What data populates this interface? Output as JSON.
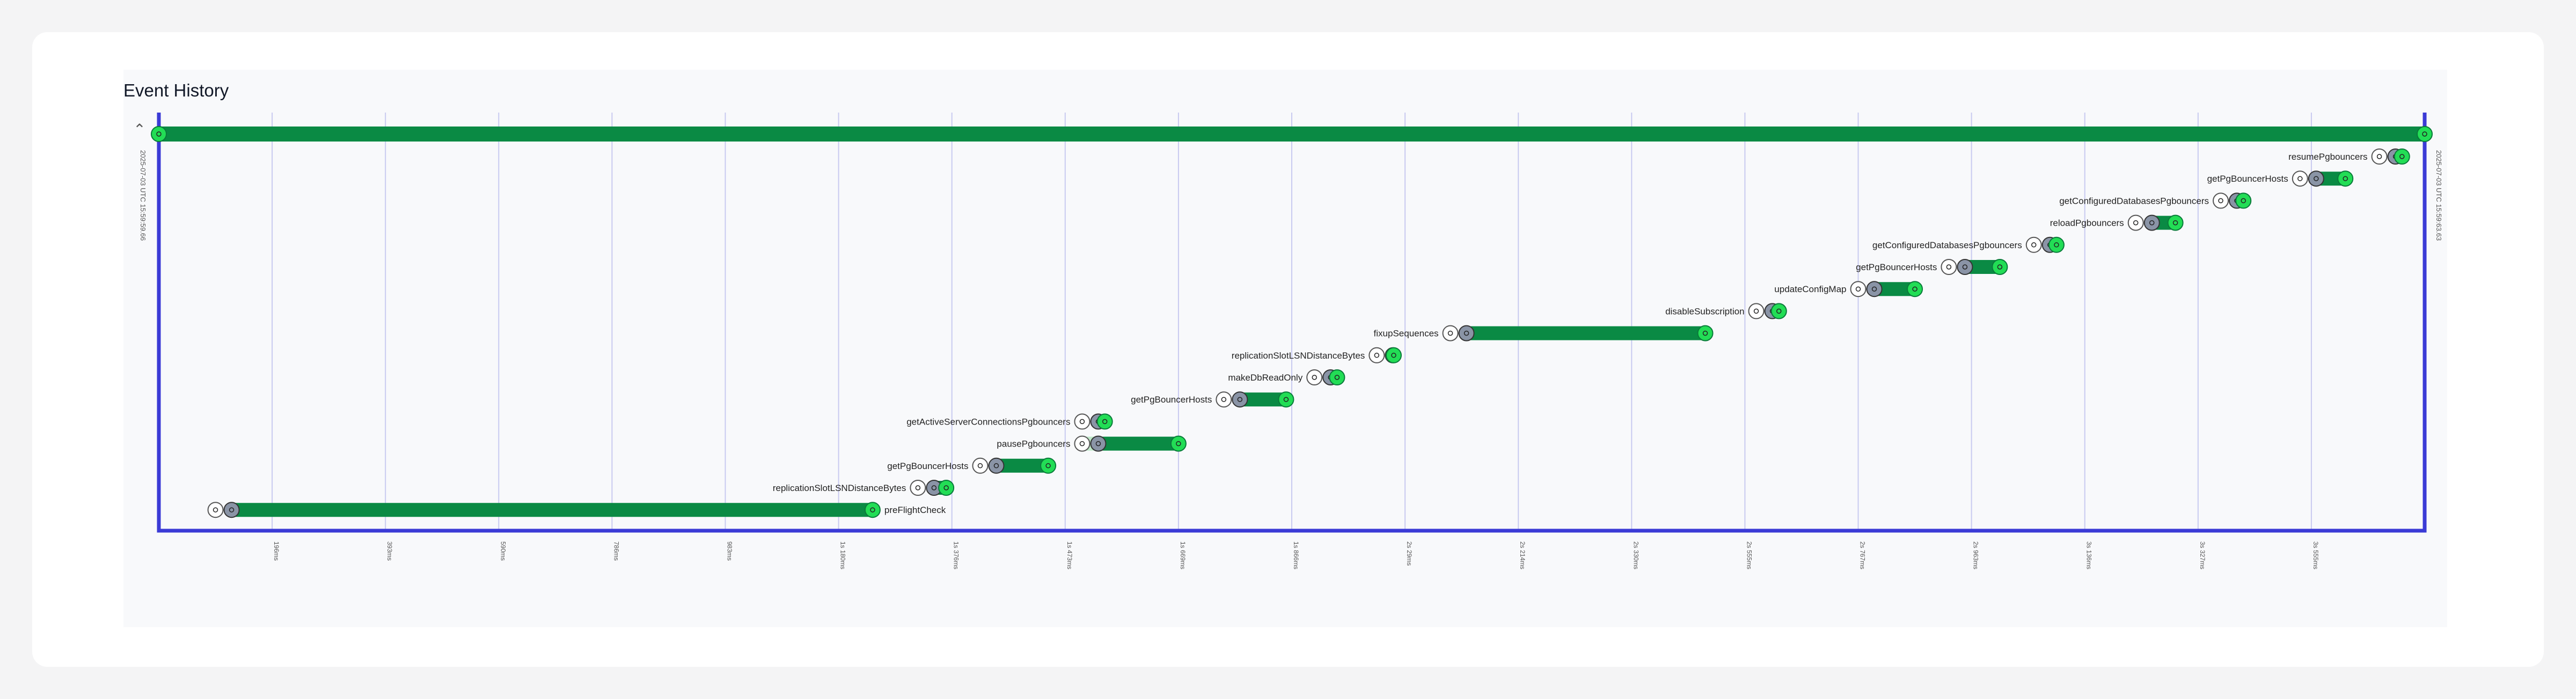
{
  "header": {
    "title": "Event History"
  },
  "icons": {
    "collapse": "chevron-up-icon"
  },
  "colors": {
    "bar": "#0a8a44",
    "bar_light": "#bfe8c9",
    "end_marker": "#22dd55",
    "mid_marker": "#8a94a6",
    "frame": "#3b3bd6",
    "grid": "#c8caf0"
  },
  "chart_data": {
    "type": "gantt",
    "x_unit": "ms",
    "xlim": [
      0,
      4000
    ],
    "start_label": "2025-07-03 UTC 15:59:59.66",
    "end_label": "2025-07-03 UTC 15:59:63.63",
    "overall_bar": {
      "start": 0,
      "end": 4000
    },
    "x_ticks": [
      {
        "value": 200,
        "label": "196ms"
      },
      {
        "value": 400,
        "label": "393ms"
      },
      {
        "value": 600,
        "label": "590ms"
      },
      {
        "value": 800,
        "label": "786ms"
      },
      {
        "value": 1000,
        "label": "983ms"
      },
      {
        "value": 1200,
        "label": "1s 180ms"
      },
      {
        "value": 1400,
        "label": "1s 376ms"
      },
      {
        "value": 1600,
        "label": "1s 473ms"
      },
      {
        "value": 1800,
        "label": "1s 669ms"
      },
      {
        "value": 2000,
        "label": "1s 866ms"
      },
      {
        "value": 2200,
        "label": "2s 29ms"
      },
      {
        "value": 2400,
        "label": "2s 214ms"
      },
      {
        "value": 2600,
        "label": "2s 330ms"
      },
      {
        "value": 2800,
        "label": "2s 555ms"
      },
      {
        "value": 3000,
        "label": "2s 767ms"
      },
      {
        "value": 3200,
        "label": "2s 963ms"
      },
      {
        "value": 3400,
        "label": "3s 136ms"
      },
      {
        "value": 3600,
        "label": "3s 327ms"
      },
      {
        "value": 3800,
        "label": "3s 555ms"
      }
    ],
    "events": [
      {
        "name": "preFlightCheck",
        "start": 100,
        "end": 1260,
        "label_side": "right"
      },
      {
        "name": "replicationSlotLSNDistanceBytes",
        "start": 1340,
        "end": 1390,
        "label_side": "left"
      },
      {
        "name": "getPgBouncerHosts",
        "start": 1450,
        "end": 1570,
        "label_side": "left"
      },
      {
        "name": "pausePgbouncers",
        "start": 1630,
        "end": 1800,
        "label_side": "left",
        "queued_until": 1660
      },
      {
        "name": "getActiveServerConnectionsPgbouncers",
        "start": 1630,
        "end": 1670,
        "label_side": "left"
      },
      {
        "name": "getPgBouncerHosts",
        "start": 1880,
        "end": 1990,
        "label_side": "left"
      },
      {
        "name": "makeDbReadOnly",
        "start": 2040,
        "end": 2080,
        "label_side": "left"
      },
      {
        "name": "replicationSlotLSNDistanceBytes",
        "start": 2150,
        "end": 2180,
        "label_side": "left"
      },
      {
        "name": "fixupSequences",
        "start": 2280,
        "end": 2730,
        "label_side": "left"
      },
      {
        "name": "disableSubscription",
        "start": 2820,
        "end": 2860,
        "label_side": "left"
      },
      {
        "name": "updateConfigMap",
        "start": 3000,
        "end": 3100,
        "label_side": "left"
      },
      {
        "name": "getPgBouncerHosts",
        "start": 3160,
        "end": 3250,
        "label_side": "left"
      },
      {
        "name": "getConfiguredDatabasesPgbouncers",
        "start": 3310,
        "end": 3350,
        "label_side": "left"
      },
      {
        "name": "reloadPgbouncers",
        "start": 3490,
        "end": 3560,
        "label_side": "left"
      },
      {
        "name": "getConfiguredDatabasesPgbouncers",
        "start": 3640,
        "end": 3680,
        "label_side": "left"
      },
      {
        "name": "getPgBouncerHosts",
        "start": 3780,
        "end": 3860,
        "label_side": "left"
      },
      {
        "name": "resumePgbouncers",
        "start": 3920,
        "end": 3960,
        "label_side": "left"
      }
    ]
  }
}
